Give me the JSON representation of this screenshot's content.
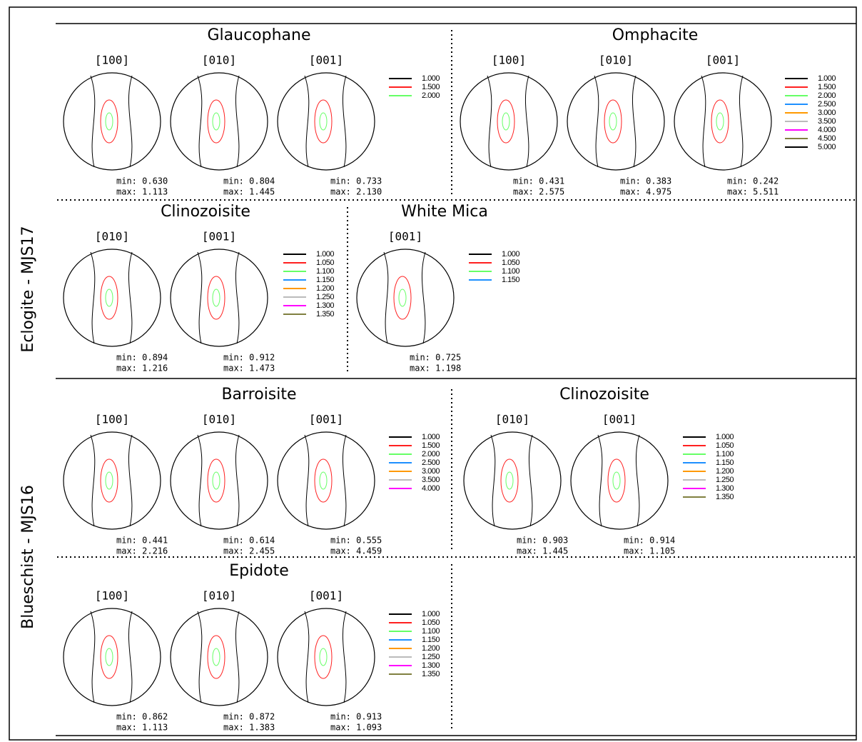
{
  "groups": [
    {
      "label": "Eclogite - MJS17",
      "minerals": [
        {
          "name": "Glaucophane",
          "figures": [
            {
              "axis": "[100]",
              "min": "min: 0.630",
              "max": "max: 1.113"
            },
            {
              "axis": "[010]",
              "min": "min: 0.804",
              "max": "max: 1.445"
            },
            {
              "axis": "[001]",
              "min": "min: 0.733",
              "max": "max: 2.130"
            }
          ],
          "legend": [
            {
              "label": "1.000",
              "color": "#000000"
            },
            {
              "label": "1.500",
              "color": "#ff2020"
            },
            {
              "label": "2.000",
              "color": "#66ff66"
            }
          ]
        },
        {
          "name": "Omphacite",
          "figures": [
            {
              "axis": "[100]",
              "min": "min: 0.431",
              "max": "max: 2.575"
            },
            {
              "axis": "[010]",
              "min": "min: 0.383",
              "max": "max: 4.975"
            },
            {
              "axis": "[001]",
              "min": "min: 0.242",
              "max": "max: 5.511"
            }
          ],
          "legend": [
            {
              "label": "1.000",
              "color": "#000000"
            },
            {
              "label": "1.500",
              "color": "#ff2020"
            },
            {
              "label": "2.000",
              "color": "#66ff66"
            },
            {
              "label": "2.500",
              "color": "#1e90ff"
            },
            {
              "label": "3.000",
              "color": "#ff9900"
            },
            {
              "label": "3.500",
              "color": "#bbbbbb"
            },
            {
              "label": "4.000",
              "color": "#ff00ff"
            },
            {
              "label": "4.500",
              "color": "#808040"
            },
            {
              "label": "5.000",
              "color": "#000000"
            }
          ]
        },
        {
          "name": "Clinozoisite",
          "figures": [
            {
              "axis": "[010]",
              "min": "min: 0.894",
              "max": "max: 1.216"
            },
            {
              "axis": "[001]",
              "min": "min: 0.912",
              "max": "max: 1.473"
            }
          ],
          "legend": [
            {
              "label": "1.000",
              "color": "#000000"
            },
            {
              "label": "1.050",
              "color": "#ff2020"
            },
            {
              "label": "1.100",
              "color": "#66ff66"
            },
            {
              "label": "1.150",
              "color": "#1e90ff"
            },
            {
              "label": "1.200",
              "color": "#ff9900"
            },
            {
              "label": "1.250",
              "color": "#bbbbbb"
            },
            {
              "label": "1.300",
              "color": "#ff00ff"
            },
            {
              "label": "1.350",
              "color": "#808040"
            }
          ]
        },
        {
          "name": "White Mica",
          "figures": [
            {
              "axis": "[001]",
              "min": "min: 0.725",
              "max": "max: 1.198"
            }
          ],
          "legend": [
            {
              "label": "1.000",
              "color": "#000000"
            },
            {
              "label": "1.050",
              "color": "#ff2020"
            },
            {
              "label": "1.100",
              "color": "#66ff66"
            },
            {
              "label": "1.150",
              "color": "#1e90ff"
            }
          ]
        }
      ]
    },
    {
      "label": "Blueschist - MJS16",
      "minerals": [
        {
          "name": "Barroisite",
          "figures": [
            {
              "axis": "[100]",
              "min": "min: 0.441",
              "max": "max: 2.216"
            },
            {
              "axis": "[010]",
              "min": "min: 0.614",
              "max": "max: 2.455"
            },
            {
              "axis": "[001]",
              "min": "min: 0.555",
              "max": "max: 4.459"
            }
          ],
          "legend": [
            {
              "label": "1.000",
              "color": "#000000"
            },
            {
              "label": "1.500",
              "color": "#ff2020"
            },
            {
              "label": "2.000",
              "color": "#66ff66"
            },
            {
              "label": "2.500",
              "color": "#1e90ff"
            },
            {
              "label": "3.000",
              "color": "#ff9900"
            },
            {
              "label": "3.500",
              "color": "#bbbbbb"
            },
            {
              "label": "4.000",
              "color": "#ff00ff"
            }
          ]
        },
        {
          "name": "Clinozoisite",
          "figures": [
            {
              "axis": "[010]",
              "min": "min: 0.903",
              "max": "max: 1.445"
            },
            {
              "axis": "[001]",
              "min": "min: 0.914",
              "max": "max: 1.105"
            }
          ],
          "legend": [
            {
              "label": "1.000",
              "color": "#000000"
            },
            {
              "label": "1.050",
              "color": "#ff2020"
            },
            {
              "label": "1.100",
              "color": "#66ff66"
            },
            {
              "label": "1.150",
              "color": "#1e90ff"
            },
            {
              "label": "1.200",
              "color": "#ff9900"
            },
            {
              "label": "1.250",
              "color": "#bbbbbb"
            },
            {
              "label": "1.300",
              "color": "#ff00ff"
            },
            {
              "label": "1.350",
              "color": "#808040"
            }
          ]
        },
        {
          "name": "Epidote",
          "figures": [
            {
              "axis": "[100]",
              "min": "min: 0.862",
              "max": "max: 1.113"
            },
            {
              "axis": "[010]",
              "min": "min: 0.872",
              "max": "max: 1.383"
            },
            {
              "axis": "[001]",
              "min": "min: 0.913",
              "max": "max: 1.093"
            }
          ],
          "legend": [
            {
              "label": "1.000",
              "color": "#000000"
            },
            {
              "label": "1.050",
              "color": "#ff2020"
            },
            {
              "label": "1.100",
              "color": "#66ff66"
            },
            {
              "label": "1.150",
              "color": "#1e90ff"
            },
            {
              "label": "1.200",
              "color": "#ff9900"
            },
            {
              "label": "1.250",
              "color": "#bbbbbb"
            },
            {
              "label": "1.300",
              "color": "#ff00ff"
            },
            {
              "label": "1.350",
              "color": "#808040"
            }
          ]
        }
      ]
    }
  ]
}
